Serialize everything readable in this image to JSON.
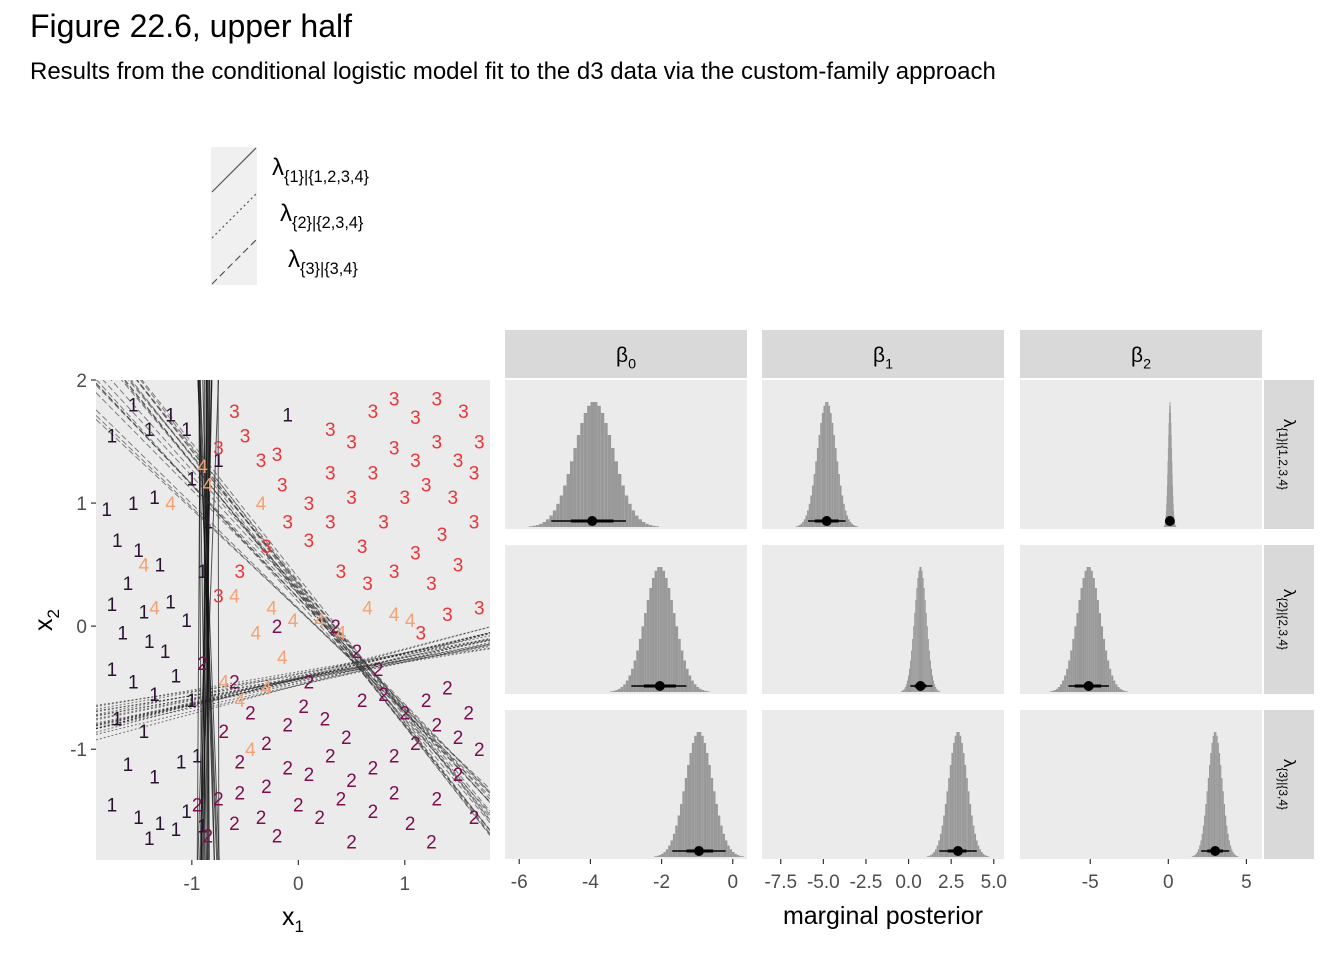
{
  "title": "Figure 22.6, upper half",
  "subtitle": "Results from the conditional logistic model fit to the d3 data via the custom-family approach",
  "colors": {
    "class_1": "#2b1232",
    "class_2": "#7c0d4f",
    "class_3": "#e8363a",
    "class_4": "#f4a275",
    "panel_bg": "#ebebeb",
    "strip_bg": "#d9d9d9",
    "hist_fill": "#999999"
  },
  "legend": {
    "entries": [
      {
        "main": "λ",
        "sub": "{1}|{1,2,3,4}",
        "linetype": "solid"
      },
      {
        "main": "λ",
        "sub": "{2}|{2,3,4}",
        "linetype": "dotted"
      },
      {
        "main": "λ",
        "sub": "{3}|{3,4}",
        "linetype": "dashed"
      }
    ]
  },
  "chart_data": [
    {
      "type": "scatter",
      "xlabel_main": "x",
      "xlabel_sub": "1",
      "ylabel_main": "x",
      "ylabel_sub": "2",
      "xlim": [
        -1.9,
        1.8
      ],
      "ylim": [
        -1.9,
        2.0
      ],
      "x_ticks": [
        -1,
        0,
        1
      ],
      "y_ticks": [
        -1,
        0,
        1,
        2
      ],
      "tick_labels_x": [
        "-1",
        "0",
        "1"
      ],
      "tick_labels_y": [
        "-1",
        "0",
        "1",
        "2"
      ],
      "points_note": "each observation drawn as its category digit",
      "points": [
        {
          "label": "1",
          "x": -1.75,
          "y": 1.55
        },
        {
          "label": "1",
          "x": -1.55,
          "y": 1.8
        },
        {
          "label": "1",
          "x": -1.4,
          "y": 1.6
        },
        {
          "label": "1",
          "x": -1.2,
          "y": 1.72
        },
        {
          "label": "1",
          "x": -1.05,
          "y": 1.6
        },
        {
          "label": "1",
          "x": -1.8,
          "y": 0.95
        },
        {
          "label": "1",
          "x": -1.55,
          "y": 1.0
        },
        {
          "label": "1",
          "x": -1.35,
          "y": 1.05
        },
        {
          "label": "1",
          "x": -1.7,
          "y": 0.7
        },
        {
          "label": "1",
          "x": -1.5,
          "y": 0.62
        },
        {
          "label": "1",
          "x": -1.3,
          "y": 0.5
        },
        {
          "label": "1",
          "x": -1.6,
          "y": 0.35
        },
        {
          "label": "1",
          "x": -1.75,
          "y": 0.18
        },
        {
          "label": "1",
          "x": -1.45,
          "y": 0.12
        },
        {
          "label": "1",
          "x": -1.2,
          "y": 0.2
        },
        {
          "label": "1",
          "x": -1.05,
          "y": 0.05
        },
        {
          "label": "1",
          "x": -1.65,
          "y": -0.05
        },
        {
          "label": "1",
          "x": -1.4,
          "y": -0.12
        },
        {
          "label": "1",
          "x": -1.25,
          "y": -0.2
        },
        {
          "label": "1",
          "x": -1.75,
          "y": -0.35
        },
        {
          "label": "1",
          "x": -1.55,
          "y": -0.45
        },
        {
          "label": "1",
          "x": -1.35,
          "y": -0.55
        },
        {
          "label": "1",
          "x": -1.15,
          "y": -0.4
        },
        {
          "label": "1",
          "x": -1.7,
          "y": -0.75
        },
        {
          "label": "1",
          "x": -1.45,
          "y": -0.85
        },
        {
          "label": "1",
          "x": -1.6,
          "y": -1.12
        },
        {
          "label": "1",
          "x": -1.35,
          "y": -1.22
        },
        {
          "label": "1",
          "x": -1.1,
          "y": -1.1
        },
        {
          "label": "1",
          "x": -1.75,
          "y": -1.45
        },
        {
          "label": "1",
          "x": -1.5,
          "y": -1.55
        },
        {
          "label": "1",
          "x": -1.3,
          "y": -1.6
        },
        {
          "label": "1",
          "x": -1.05,
          "y": -1.5
        },
        {
          "label": "1",
          "x": -1.4,
          "y": -1.72
        },
        {
          "label": "1",
          "x": -1.15,
          "y": -1.65
        },
        {
          "label": "1",
          "x": -0.9,
          "y": -1.62
        },
        {
          "label": "1",
          "x": -1.0,
          "y": 1.2
        },
        {
          "label": "1",
          "x": -0.85,
          "y": 0.85
        },
        {
          "label": "1",
          "x": -0.9,
          "y": 0.45
        },
        {
          "label": "1",
          "x": -1.0,
          "y": -0.6
        },
        {
          "label": "1",
          "x": -0.95,
          "y": -1.05
        },
        {
          "label": "1",
          "x": -0.1,
          "y": 1.72
        },
        {
          "label": "1",
          "x": -0.75,
          "y": 1.35
        },
        {
          "label": "2",
          "x": -0.9,
          "y": -0.3
        },
        {
          "label": "2",
          "x": -0.6,
          "y": -0.45
        },
        {
          "label": "2",
          "x": -0.45,
          "y": -0.7
        },
        {
          "label": "2",
          "x": -0.7,
          "y": -0.85
        },
        {
          "label": "2",
          "x": -0.55,
          "y": -1.1
        },
        {
          "label": "2",
          "x": -0.3,
          "y": -0.95
        },
        {
          "label": "2",
          "x": -0.1,
          "y": -0.8
        },
        {
          "label": "2",
          "x": 0.05,
          "y": -0.65
        },
        {
          "label": "2",
          "x": 0.25,
          "y": -0.75
        },
        {
          "label": "2",
          "x": 0.45,
          "y": -0.9
        },
        {
          "label": "2",
          "x": 0.6,
          "y": -0.6
        },
        {
          "label": "2",
          "x": 0.8,
          "y": -0.55
        },
        {
          "label": "2",
          "x": 1.0,
          "y": -0.7
        },
        {
          "label": "2",
          "x": 1.2,
          "y": -0.6
        },
        {
          "label": "2",
          "x": 1.4,
          "y": -0.5
        },
        {
          "label": "2",
          "x": 1.6,
          "y": -0.7
        },
        {
          "label": "2",
          "x": 1.5,
          "y": -0.9
        },
        {
          "label": "2",
          "x": 1.3,
          "y": -0.8
        },
        {
          "label": "2",
          "x": 1.1,
          "y": -0.95
        },
        {
          "label": "2",
          "x": 0.9,
          "y": -1.05
        },
        {
          "label": "2",
          "x": 0.7,
          "y": -1.15
        },
        {
          "label": "2",
          "x": 0.5,
          "y": -1.25
        },
        {
          "label": "2",
          "x": 0.3,
          "y": -1.05
        },
        {
          "label": "2",
          "x": 0.1,
          "y": -1.2
        },
        {
          "label": "2",
          "x": -0.1,
          "y": -1.15
        },
        {
          "label": "2",
          "x": -0.3,
          "y": -1.3
        },
        {
          "label": "2",
          "x": -0.55,
          "y": -1.35
        },
        {
          "label": "2",
          "x": -0.75,
          "y": -1.4
        },
        {
          "label": "2",
          "x": -0.95,
          "y": -1.45
        },
        {
          "label": "2",
          "x": -0.85,
          "y": -1.7
        },
        {
          "label": "2",
          "x": -0.6,
          "y": -1.6
        },
        {
          "label": "2",
          "x": -0.35,
          "y": -1.55
        },
        {
          "label": "2",
          "x": -0.2,
          "y": -1.7
        },
        {
          "label": "2",
          "x": 0.0,
          "y": -1.45
        },
        {
          "label": "2",
          "x": 0.2,
          "y": -1.55
        },
        {
          "label": "2",
          "x": 0.4,
          "y": -1.4
        },
        {
          "label": "2",
          "x": 0.5,
          "y": -1.75
        },
        {
          "label": "2",
          "x": 0.7,
          "y": -1.5
        },
        {
          "label": "2",
          "x": 0.9,
          "y": -1.35
        },
        {
          "label": "2",
          "x": 1.05,
          "y": -1.6
        },
        {
          "label": "2",
          "x": 1.25,
          "y": -1.75
        },
        {
          "label": "2",
          "x": 1.3,
          "y": -1.4
        },
        {
          "label": "2",
          "x": 1.5,
          "y": -1.2
        },
        {
          "label": "2",
          "x": 1.7,
          "y": -1.0
        },
        {
          "label": "2",
          "x": 1.65,
          "y": -1.55
        },
        {
          "label": "2",
          "x": 0.35,
          "y": 0.0
        },
        {
          "label": "2",
          "x": 0.55,
          "y": -0.2
        },
        {
          "label": "2",
          "x": 0.75,
          "y": -0.35
        },
        {
          "label": "2",
          "x": -0.2,
          "y": 0.0
        },
        {
          "label": "2",
          "x": 0.1,
          "y": -0.45
        },
        {
          "label": "3",
          "x": -0.75,
          "y": 1.45
        },
        {
          "label": "3",
          "x": -0.5,
          "y": 1.55
        },
        {
          "label": "3",
          "x": -0.35,
          "y": 1.35
        },
        {
          "label": "3",
          "x": -0.6,
          "y": 1.75
        },
        {
          "label": "3",
          "x": -0.15,
          "y": 1.15
        },
        {
          "label": "3",
          "x": 0.1,
          "y": 1.0
        },
        {
          "label": "3",
          "x": 0.3,
          "y": 1.25
        },
        {
          "label": "3",
          "x": 0.5,
          "y": 1.5
        },
        {
          "label": "3",
          "x": 0.7,
          "y": 1.75
        },
        {
          "label": "3",
          "x": 0.9,
          "y": 1.85
        },
        {
          "label": "3",
          "x": 1.1,
          "y": 1.7
        },
        {
          "label": "3",
          "x": 1.3,
          "y": 1.85
        },
        {
          "label": "3",
          "x": 1.55,
          "y": 1.75
        },
        {
          "label": "3",
          "x": 1.7,
          "y": 1.5
        },
        {
          "label": "3",
          "x": 1.5,
          "y": 1.35
        },
        {
          "label": "3",
          "x": 1.3,
          "y": 1.5
        },
        {
          "label": "3",
          "x": 1.1,
          "y": 1.35
        },
        {
          "label": "3",
          "x": 0.9,
          "y": 1.45
        },
        {
          "label": "3",
          "x": 0.7,
          "y": 1.25
        },
        {
          "label": "3",
          "x": 0.5,
          "y": 1.05
        },
        {
          "label": "3",
          "x": 0.3,
          "y": 0.85
        },
        {
          "label": "3",
          "x": 0.1,
          "y": 0.7
        },
        {
          "label": "3",
          "x": -0.1,
          "y": 0.85
        },
        {
          "label": "3",
          "x": -0.3,
          "y": 0.65
        },
        {
          "label": "3",
          "x": -0.55,
          "y": 0.45
        },
        {
          "label": "3",
          "x": -0.75,
          "y": 0.25
        },
        {
          "label": "3",
          "x": 0.4,
          "y": 0.45
        },
        {
          "label": "3",
          "x": 0.6,
          "y": 0.65
        },
        {
          "label": "3",
          "x": 0.8,
          "y": 0.85
        },
        {
          "label": "3",
          "x": 1.0,
          "y": 1.05
        },
        {
          "label": "3",
          "x": 1.2,
          "y": 1.15
        },
        {
          "label": "3",
          "x": 1.45,
          "y": 1.05
        },
        {
          "label": "3",
          "x": 1.65,
          "y": 0.85
        },
        {
          "label": "3",
          "x": 1.35,
          "y": 0.75
        },
        {
          "label": "3",
          "x": 1.1,
          "y": 0.6
        },
        {
          "label": "3",
          "x": 0.9,
          "y": 0.45
        },
        {
          "label": "3",
          "x": 0.65,
          "y": 0.35
        },
        {
          "label": "3",
          "x": 1.25,
          "y": 0.35
        },
        {
          "label": "3",
          "x": 1.5,
          "y": 0.5
        },
        {
          "label": "3",
          "x": 1.7,
          "y": 0.15
        },
        {
          "label": "3",
          "x": 1.4,
          "y": 0.1
        },
        {
          "label": "3",
          "x": 1.15,
          "y": -0.05
        },
        {
          "label": "3",
          "x": 0.3,
          "y": 1.6
        },
        {
          "label": "3",
          "x": -0.2,
          "y": 1.4
        },
        {
          "label": "3",
          "x": 1.65,
          "y": 1.25
        },
        {
          "label": "4",
          "x": -1.2,
          "y": 1.0
        },
        {
          "label": "4",
          "x": -1.45,
          "y": 0.5
        },
        {
          "label": "4",
          "x": -1.35,
          "y": 0.15
        },
        {
          "label": "4",
          "x": -0.85,
          "y": 1.15
        },
        {
          "label": "4",
          "x": -0.35,
          "y": 1.0
        },
        {
          "label": "4",
          "x": -0.6,
          "y": 0.25
        },
        {
          "label": "4",
          "x": -0.25,
          "y": 0.15
        },
        {
          "label": "4",
          "x": -0.05,
          "y": 0.05
        },
        {
          "label": "4",
          "x": 0.2,
          "y": 0.05
        },
        {
          "label": "4",
          "x": 0.4,
          "y": -0.05
        },
        {
          "label": "4",
          "x": -0.4,
          "y": -0.05
        },
        {
          "label": "4",
          "x": -0.15,
          "y": -0.25
        },
        {
          "label": "4",
          "x": -0.3,
          "y": -0.5
        },
        {
          "label": "4",
          "x": -0.55,
          "y": -0.6
        },
        {
          "label": "4",
          "x": -0.7,
          "y": -0.45
        },
        {
          "label": "4",
          "x": -0.45,
          "y": -1.0
        },
        {
          "label": "4",
          "x": 0.65,
          "y": 0.15
        },
        {
          "label": "4",
          "x": 0.9,
          "y": 0.1
        },
        {
          "label": "4",
          "x": 1.05,
          "y": 0.05
        },
        {
          "label": "4",
          "x": -0.9,
          "y": 1.3
        }
      ]
    },
    {
      "type": "histogram_grid",
      "xlabel": "marginal posterior",
      "columns": [
        {
          "main": "β",
          "sub": "0",
          "xlim": [
            -6.4,
            0.4
          ],
          "ticks": [
            -6,
            -4,
            -2,
            0
          ],
          "tick_labels": [
            "-6",
            "-4",
            "-2",
            "0"
          ]
        },
        {
          "main": "β",
          "sub": "1",
          "xlim": [
            -8.6,
            5.6
          ],
          "ticks": [
            -7.5,
            -5.0,
            -2.5,
            0.0,
            2.5,
            5.0
          ],
          "tick_labels": [
            "-7.5",
            "-5.0",
            "-2.5",
            "0.0",
            "2.5",
            "5.0"
          ]
        },
        {
          "main": "β",
          "sub": "2",
          "xlim": [
            -9.5,
            6.0
          ],
          "ticks": [
            -5,
            0,
            5
          ],
          "tick_labels": [
            "-5",
            "0",
            "5"
          ]
        }
      ],
      "rows": [
        {
          "main": "λ",
          "sub": "{1}|{1,2,3,4}"
        },
        {
          "main": "λ",
          "sub": "{2}|{2,3,4}"
        },
        {
          "main": "λ",
          "sub": "{3}|{3,4}"
        }
      ],
      "cells": [
        {
          "mean": -3.9,
          "sd": 0.55,
          "median": -3.95,
          "ci95": [
            -5.1,
            -3.0
          ],
          "ci66": [
            -4.55,
            -3.35
          ]
        },
        {
          "mean": -4.8,
          "sd": 0.55,
          "median": -4.8,
          "ci95": [
            -5.9,
            -3.7
          ],
          "ci66": [
            -5.5,
            -4.1
          ]
        },
        {
          "mean": 0.1,
          "sd": 0.12,
          "median": 0.1,
          "ci95": [
            -0.15,
            0.35
          ],
          "ci66": [
            -0.05,
            0.25
          ]
        },
        {
          "mean": -2.05,
          "sd": 0.42,
          "median": -2.05,
          "ci95": [
            -2.85,
            -1.3
          ],
          "ci66": [
            -2.5,
            -1.6
          ]
        },
        {
          "mean": 0.7,
          "sd": 0.35,
          "median": 0.7,
          "ci95": [
            0.1,
            1.4
          ],
          "ci66": [
            0.35,
            1.05
          ]
        },
        {
          "mean": -5.1,
          "sd": 0.75,
          "median": -5.1,
          "ci95": [
            -6.4,
            -3.8
          ],
          "ci66": [
            -6.0,
            -4.3
          ]
        },
        {
          "mean": -0.95,
          "sd": 0.38,
          "median": -0.95,
          "ci95": [
            -1.7,
            -0.2
          ],
          "ci66": [
            -1.3,
            -0.55
          ]
        },
        {
          "mean": 2.9,
          "sd": 0.55,
          "median": 2.9,
          "ci95": [
            1.8,
            4.0
          ],
          "ci66": [
            2.3,
            3.4
          ]
        },
        {
          "mean": 3.0,
          "sd": 0.45,
          "median": 3.0,
          "ci95": [
            2.1,
            3.9
          ],
          "ci66": [
            2.5,
            3.5
          ]
        }
      ]
    }
  ]
}
